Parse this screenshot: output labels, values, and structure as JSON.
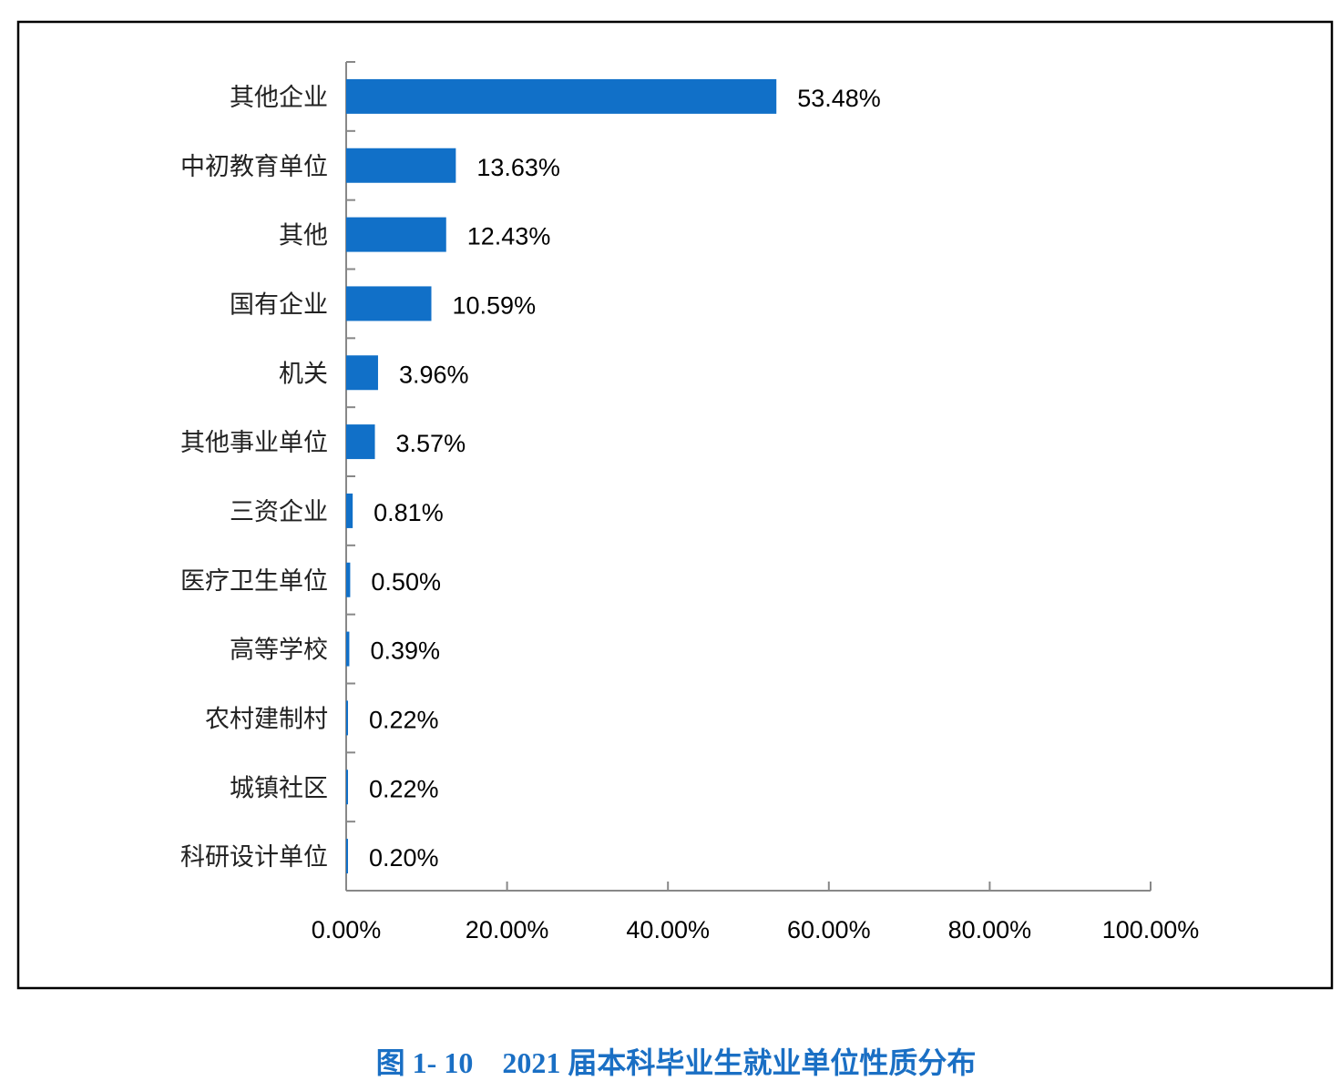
{
  "chart_data": {
    "type": "bar",
    "orientation": "horizontal",
    "categories": [
      "其他企业",
      "中初教育单位",
      "其他",
      "国有企业",
      "机关",
      "其他事业单位",
      "三资企业",
      "医疗卫生单位",
      "高等学校",
      "农村建制村",
      "城镇社区",
      "科研设计单位"
    ],
    "values": [
      53.48,
      13.63,
      12.43,
      10.59,
      3.96,
      3.57,
      0.81,
      0.5,
      0.39,
      0.22,
      0.22,
      0.2
    ],
    "data_labels": [
      "53.48%",
      "13.63%",
      "12.43%",
      "10.59%",
      "3.96%",
      "3.57%",
      "0.81%",
      "0.50%",
      "0.39%",
      "0.22%",
      "0.22%",
      "0.20%"
    ],
    "xlim": [
      0,
      100
    ],
    "x_ticks": [
      0,
      20,
      40,
      60,
      80,
      100
    ],
    "x_tick_labels": [
      "0.00%",
      "20.00%",
      "40.00%",
      "60.00%",
      "80.00%",
      "100.00%"
    ],
    "grid": false,
    "legend": "none",
    "bar_color": "#1170c8",
    "caption": "图 1- 10    2021 届本科毕业生就业单位性质分布",
    "caption_color": "#1a6fc4"
  }
}
